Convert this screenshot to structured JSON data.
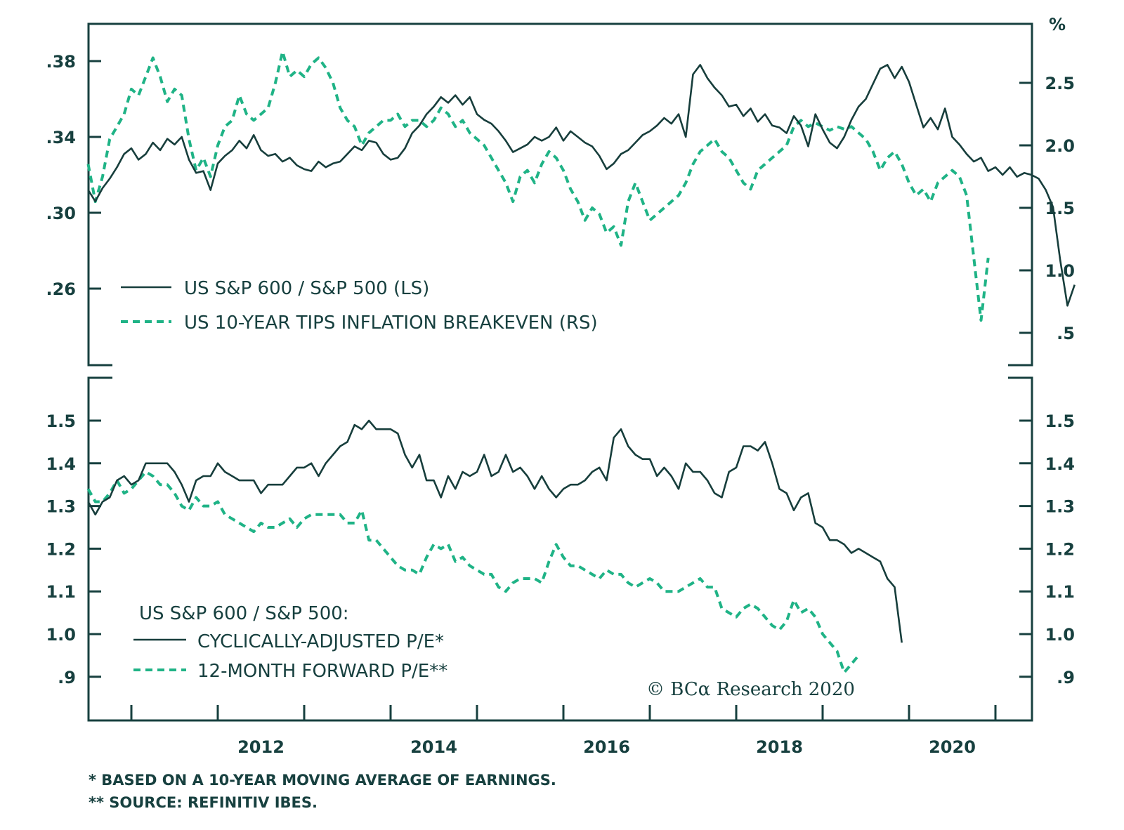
{
  "chart_data": [
    {
      "type": "line",
      "panel": "top",
      "title": "",
      "legend_position": "bottom-left",
      "x_start": 2010.5,
      "x_step_years": 0.0833333,
      "left_axis": {
        "label": "",
        "ylim": [
          0.22,
          0.4
        ],
        "ticks": [
          0.38,
          0.34,
          0.3,
          0.26
        ],
        "tick_labels": [
          ".38",
          ".34",
          ".30",
          ".26"
        ]
      },
      "right_axis": {
        "label": "%",
        "ylim": [
          0.3,
          3.1
        ],
        "ticks": [
          2.5,
          2.0,
          1.5,
          1.0,
          0.5
        ],
        "tick_labels": [
          "2.5",
          "2.0",
          "1.5",
          "1.0",
          ".5"
        ]
      },
      "series": [
        {
          "name": "US S&P 600 / S&P 500 (LS)",
          "axis": "left",
          "style": "solid",
          "color": "#173e3c",
          "values": [
            0.312,
            0.306,
            0.313,
            0.318,
            0.324,
            0.331,
            0.334,
            0.328,
            0.331,
            0.337,
            0.333,
            0.339,
            0.336,
            0.34,
            0.328,
            0.321,
            0.322,
            0.312,
            0.326,
            0.33,
            0.333,
            0.338,
            0.334,
            0.341,
            0.333,
            0.33,
            0.331,
            0.327,
            0.329,
            0.325,
            0.323,
            0.322,
            0.327,
            0.324,
            0.326,
            0.327,
            0.331,
            0.335,
            0.333,
            0.338,
            0.337,
            0.331,
            0.328,
            0.329,
            0.334,
            0.342,
            0.346,
            0.352,
            0.356,
            0.361,
            0.358,
            0.362,
            0.357,
            0.361,
            0.352,
            0.349,
            0.347,
            0.343,
            0.338,
            0.332,
            0.334,
            0.336,
            0.34,
            0.338,
            0.34,
            0.345,
            0.338,
            0.343,
            0.34,
            0.337,
            0.335,
            0.33,
            0.323,
            0.326,
            0.331,
            0.333,
            0.337,
            0.341,
            0.343,
            0.346,
            0.35,
            0.347,
            0.352,
            0.34,
            0.373,
            0.378,
            0.371,
            0.366,
            0.362,
            0.356,
            0.357,
            0.351,
            0.355,
            0.348,
            0.352,
            0.346,
            0.345,
            0.342,
            0.351,
            0.346,
            0.335,
            0.352,
            0.344,
            0.337,
            0.334,
            0.34,
            0.349,
            0.356,
            0.36,
            0.368,
            0.376,
            0.378,
            0.371,
            0.377,
            0.369,
            0.357,
            0.345,
            0.35,
            0.344,
            0.355,
            0.34,
            0.336,
            0.331,
            0.327,
            0.329,
            0.322,
            0.324,
            0.32,
            0.324,
            0.319,
            0.321,
            0.32,
            0.318,
            0.312,
            0.303,
            0.275,
            0.251,
            0.262
          ]
        },
        {
          "name": "US 10-YEAR TIPS INFLATION BREAKEVEN (RS)",
          "axis": "right",
          "style": "dashed",
          "color": "#1fb386",
          "values": [
            1.85,
            1.55,
            1.75,
            2.05,
            2.15,
            2.25,
            2.45,
            2.4,
            2.55,
            2.7,
            2.55,
            2.35,
            2.45,
            2.4,
            2.05,
            1.8,
            1.9,
            1.75,
            2.0,
            2.15,
            2.2,
            2.4,
            2.25,
            2.2,
            2.25,
            2.3,
            2.5,
            2.75,
            2.55,
            2.6,
            2.55,
            2.65,
            2.7,
            2.62,
            2.5,
            2.3,
            2.2,
            2.15,
            2.0,
            2.1,
            2.15,
            2.2,
            2.2,
            2.25,
            2.15,
            2.2,
            2.2,
            2.15,
            2.2,
            2.3,
            2.25,
            2.15,
            2.2,
            2.1,
            2.05,
            2.0,
            1.9,
            1.8,
            1.7,
            1.55,
            1.75,
            1.8,
            1.7,
            1.85,
            1.95,
            1.9,
            1.8,
            1.65,
            1.55,
            1.4,
            1.5,
            1.45,
            1.3,
            1.35,
            1.2,
            1.55,
            1.7,
            1.55,
            1.4,
            1.45,
            1.5,
            1.55,
            1.6,
            1.7,
            1.85,
            1.95,
            2.0,
            2.05,
            1.95,
            1.9,
            1.8,
            1.7,
            1.65,
            1.8,
            1.85,
            1.9,
            1.95,
            2.0,
            2.15,
            2.2,
            2.15,
            2.18,
            2.15,
            2.12,
            2.15,
            2.13,
            2.15,
            2.1,
            2.05,
            1.95,
            1.8,
            1.9,
            1.95,
            1.85,
            1.7,
            1.6,
            1.65,
            1.55,
            1.7,
            1.75,
            1.8,
            1.75,
            1.6,
            1.1,
            0.6,
            1.1
          ]
        }
      ]
    },
    {
      "type": "line",
      "panel": "bottom",
      "title": "US S&P 600 / S&P 500:",
      "legend_position": "bottom-left",
      "x_start": 2010.5,
      "x_step_years": 0.0833333,
      "xlabel": "",
      "x_tick_labels": [
        "2012",
        "2014",
        "2016",
        "2018",
        "2020"
      ],
      "x_ticks_years": [
        2011,
        2012,
        2013,
        2014,
        2015,
        2016,
        2017,
        2018,
        2019,
        2020,
        2021
      ],
      "xlim": [
        2010.5,
        2021.5
      ],
      "left_axis": {
        "ylim": [
          0.8,
          1.6
        ],
        "ticks": [
          1.5,
          1.4,
          1.3,
          1.2,
          1.1,
          1.0,
          0.9
        ],
        "tick_labels": [
          "1.5",
          "1.4",
          "1.3",
          "1.2",
          "1.1",
          "1.0",
          ".9"
        ]
      },
      "right_axis": {
        "ylim": [
          0.8,
          1.6
        ],
        "ticks": [
          1.5,
          1.4,
          1.3,
          1.2,
          1.1,
          1.0,
          0.9
        ],
        "tick_labels": [
          "1.5",
          "1.4",
          "1.3",
          "1.2",
          "1.1",
          "1.0",
          ".9"
        ]
      },
      "series": [
        {
          "name": "CYCLICALLY-ADJUSTED P/E*",
          "style": "solid",
          "color": "#173e3c",
          "values": [
            1.31,
            1.28,
            1.31,
            1.32,
            1.36,
            1.37,
            1.35,
            1.36,
            1.4,
            1.4,
            1.4,
            1.4,
            1.38,
            1.35,
            1.31,
            1.36,
            1.37,
            1.37,
            1.4,
            1.38,
            1.37,
            1.36,
            1.36,
            1.36,
            1.33,
            1.35,
            1.35,
            1.35,
            1.37,
            1.39,
            1.39,
            1.4,
            1.37,
            1.4,
            1.42,
            1.44,
            1.45,
            1.49,
            1.48,
            1.5,
            1.48,
            1.48,
            1.48,
            1.47,
            1.42,
            1.39,
            1.42,
            1.36,
            1.36,
            1.32,
            1.37,
            1.34,
            1.38,
            1.37,
            1.38,
            1.42,
            1.37,
            1.38,
            1.42,
            1.38,
            1.39,
            1.37,
            1.34,
            1.37,
            1.34,
            1.32,
            1.34,
            1.35,
            1.35,
            1.36,
            1.38,
            1.39,
            1.36,
            1.46,
            1.48,
            1.44,
            1.42,
            1.41,
            1.41,
            1.37,
            1.39,
            1.37,
            1.34,
            1.4,
            1.38,
            1.38,
            1.36,
            1.33,
            1.32,
            1.38,
            1.39,
            1.44,
            1.44,
            1.43,
            1.45,
            1.4,
            1.34,
            1.33,
            1.29,
            1.32,
            1.33,
            1.26,
            1.25,
            1.22,
            1.22,
            1.21,
            1.19,
            1.2,
            1.19,
            1.18,
            1.17,
            1.13,
            1.11,
            0.98
          ]
        },
        {
          "name": "12-MONTH FORWARD P/E**",
          "style": "dashed",
          "color": "#1fb386",
          "values": [
            1.34,
            1.31,
            1.31,
            1.33,
            1.36,
            1.33,
            1.34,
            1.36,
            1.38,
            1.37,
            1.35,
            1.35,
            1.33,
            1.3,
            1.29,
            1.32,
            1.3,
            1.3,
            1.31,
            1.28,
            1.27,
            1.26,
            1.25,
            1.24,
            1.26,
            1.25,
            1.25,
            1.26,
            1.27,
            1.25,
            1.27,
            1.28,
            1.28,
            1.28,
            1.28,
            1.28,
            1.26,
            1.26,
            1.29,
            1.22,
            1.22,
            1.2,
            1.18,
            1.16,
            1.15,
            1.15,
            1.14,
            1.18,
            1.21,
            1.2,
            1.21,
            1.17,
            1.18,
            1.16,
            1.15,
            1.14,
            1.14,
            1.11,
            1.1,
            1.12,
            1.13,
            1.13,
            1.13,
            1.12,
            1.17,
            1.21,
            1.18,
            1.16,
            1.16,
            1.15,
            1.14,
            1.13,
            1.15,
            1.14,
            1.14,
            1.12,
            1.11,
            1.12,
            1.13,
            1.12,
            1.1,
            1.1,
            1.1,
            1.11,
            1.12,
            1.13,
            1.11,
            1.11,
            1.06,
            1.05,
            1.04,
            1.06,
            1.07,
            1.06,
            1.04,
            1.02,
            1.01,
            1.03,
            1.08,
            1.05,
            1.06,
            1.04,
            1.0,
            0.98,
            0.96,
            0.91,
            0.93,
            0.95
          ]
        }
      ]
    }
  ],
  "top_panel": {
    "right_axis_unit": "%",
    "legend": [
      {
        "label": "US S&P 600 / S&P 500 (LS)",
        "style": "solid"
      },
      {
        "label": "US 10-YEAR TIPS INFLATION BREAKEVEN (RS)",
        "style": "dashed"
      }
    ]
  },
  "bottom_panel": {
    "legend_title": "US S&P 600 / S&P 500:",
    "legend": [
      {
        "label": "CYCLICALLY-ADJUSTED  P/E*",
        "style": "solid"
      },
      {
        "label": "12-MONTH FORWARD P/E**",
        "style": "dashed"
      }
    ],
    "copyright": "© BCα Research 2020"
  },
  "footnotes": [
    "*  BASED ON A 10-YEAR MOVING AVERAGE OF EARNINGS.",
    "** SOURCE: REFINITIV IBES."
  ],
  "colors": {
    "axis": "#17403f",
    "solid_series": "#173e3c",
    "dashed_series": "#1fb386"
  }
}
